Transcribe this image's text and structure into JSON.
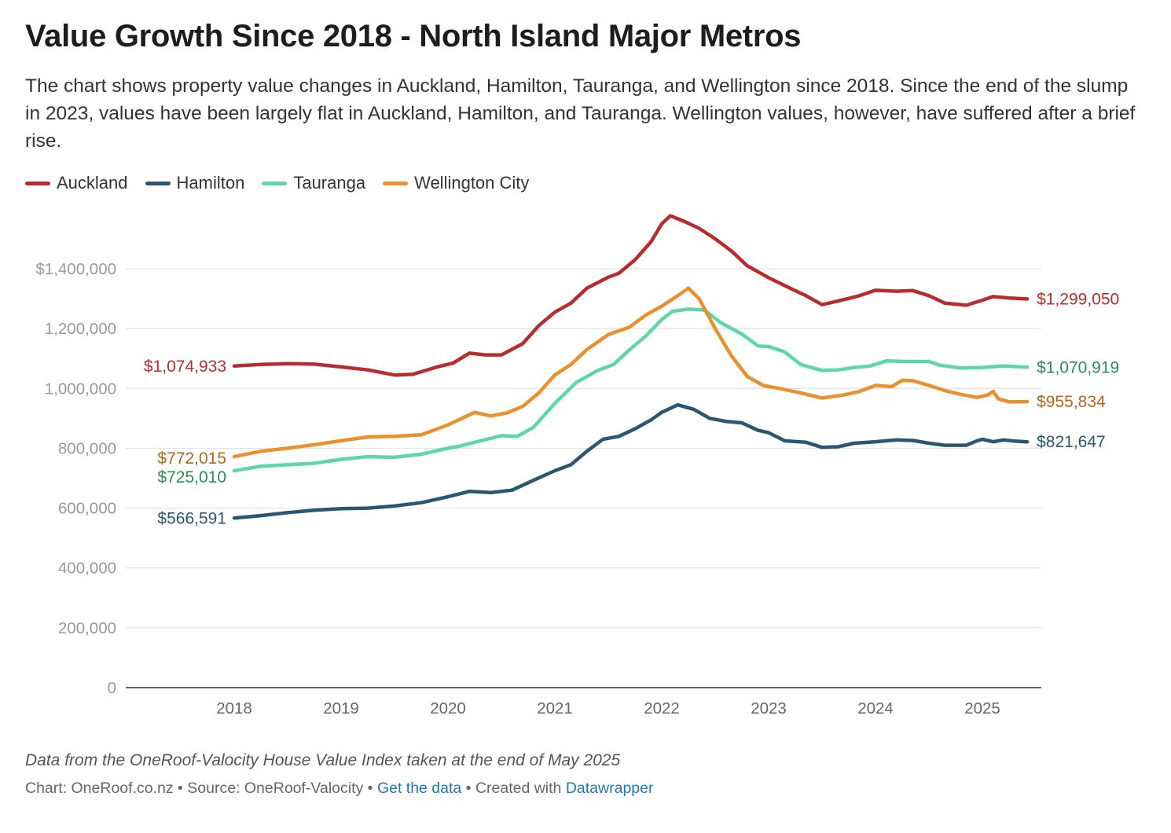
{
  "title": "Value Growth Since 2018 - North Island Major Metros",
  "subtitle": "The chart shows property value changes in Auckland, Hamilton, Tauranga, and Wellington since 2018. Since the end of the slump in 2023, values have been largely flat in Auckland, Hamilton, and Tauranga. Wellington values, however, have suffered after a brief rise.",
  "notes": "Data from the OneRoof-Valocity House Value Index taken at the end of May 2025",
  "byline": {
    "chart": "Chart: OneRoof.co.nz",
    "sep1": " • ",
    "source": "Source: OneRoof-Valocity",
    "sep2": " • ",
    "get_data": "Get the data",
    "sep3": " • ",
    "created": "Created with ",
    "datawrapper": "Datawrapper"
  },
  "chart_data": {
    "type": "line",
    "title": "Value Growth Since 2018 - North Island Major Metros",
    "xlabel": "",
    "ylabel": "",
    "xlim": [
      2017.0,
      2025.5
    ],
    "ylim": [
      0,
      1500000
    ],
    "x_ticks": [
      2018,
      2019,
      2020,
      2021,
      2022,
      2023,
      2024,
      2025
    ],
    "x_tick_labels": [
      "2018",
      "2019",
      "2020",
      "2021",
      "2022",
      "2023",
      "2024",
      "2025"
    ],
    "y_ticks": [
      0,
      200000,
      400000,
      600000,
      800000,
      1000000,
      1200000,
      1400000
    ],
    "y_tick_labels": [
      "0",
      "200,000",
      "400,000",
      "600,000",
      "800,000",
      "1,000,000",
      "1,200,000",
      "$1,400,000"
    ],
    "grid": true,
    "legend": "top-left",
    "series": [
      {
        "name": "Auckland",
        "color": "#b72d2d",
        "start_label": "$1,074,933",
        "end_label": "$1,299,050",
        "points": [
          [
            2018.0,
            1074933
          ],
          [
            2018.25,
            1080000
          ],
          [
            2018.5,
            1083000
          ],
          [
            2018.75,
            1081000
          ],
          [
            2019.0,
            1072000
          ],
          [
            2019.25,
            1062000
          ],
          [
            2019.5,
            1045000
          ],
          [
            2019.67,
            1047000
          ],
          [
            2019.9,
            1072000
          ],
          [
            2020.05,
            1085000
          ],
          [
            2020.2,
            1118000
          ],
          [
            2020.35,
            1112000
          ],
          [
            2020.5,
            1112000
          ],
          [
            2020.7,
            1150000
          ],
          [
            2020.85,
            1210000
          ],
          [
            2021.0,
            1255000
          ],
          [
            2021.15,
            1285000
          ],
          [
            2021.3,
            1335000
          ],
          [
            2021.5,
            1372000
          ],
          [
            2021.6,
            1385000
          ],
          [
            2021.75,
            1430000
          ],
          [
            2021.9,
            1490000
          ],
          [
            2022.0,
            1550000
          ],
          [
            2022.08,
            1577000
          ],
          [
            2022.2,
            1560000
          ],
          [
            2022.35,
            1535000
          ],
          [
            2022.5,
            1500000
          ],
          [
            2022.65,
            1460000
          ],
          [
            2022.8,
            1410000
          ],
          [
            2023.0,
            1370000
          ],
          [
            2023.2,
            1335000
          ],
          [
            2023.35,
            1310000
          ],
          [
            2023.5,
            1280000
          ],
          [
            2023.65,
            1292000
          ],
          [
            2023.85,
            1310000
          ],
          [
            2024.0,
            1328000
          ],
          [
            2024.2,
            1325000
          ],
          [
            2024.35,
            1327000
          ],
          [
            2024.5,
            1310000
          ],
          [
            2024.65,
            1285000
          ],
          [
            2024.85,
            1278000
          ],
          [
            2025.0,
            1295000
          ],
          [
            2025.1,
            1307000
          ],
          [
            2025.25,
            1302000
          ],
          [
            2025.42,
            1299050
          ]
        ]
      },
      {
        "name": "Hamilton",
        "color": "#2a5671",
        "start_label": "$566,591",
        "end_label": "$821,647",
        "points": [
          [
            2018.0,
            566591
          ],
          [
            2018.25,
            575000
          ],
          [
            2018.5,
            585000
          ],
          [
            2018.75,
            593000
          ],
          [
            2019.0,
            598000
          ],
          [
            2019.25,
            600000
          ],
          [
            2019.5,
            607000
          ],
          [
            2019.75,
            618000
          ],
          [
            2020.0,
            638000
          ],
          [
            2020.2,
            656000
          ],
          [
            2020.4,
            652000
          ],
          [
            2020.6,
            660000
          ],
          [
            2020.8,
            693000
          ],
          [
            2021.0,
            725000
          ],
          [
            2021.15,
            745000
          ],
          [
            2021.3,
            790000
          ],
          [
            2021.45,
            830000
          ],
          [
            2021.6,
            840000
          ],
          [
            2021.75,
            865000
          ],
          [
            2021.9,
            895000
          ],
          [
            2022.0,
            920000
          ],
          [
            2022.15,
            945000
          ],
          [
            2022.3,
            930000
          ],
          [
            2022.45,
            900000
          ],
          [
            2022.6,
            890000
          ],
          [
            2022.75,
            885000
          ],
          [
            2022.9,
            860000
          ],
          [
            2023.0,
            852000
          ],
          [
            2023.15,
            825000
          ],
          [
            2023.35,
            820000
          ],
          [
            2023.5,
            803000
          ],
          [
            2023.65,
            805000
          ],
          [
            2023.8,
            817000
          ],
          [
            2024.0,
            822000
          ],
          [
            2024.2,
            828000
          ],
          [
            2024.35,
            826000
          ],
          [
            2024.5,
            817000
          ],
          [
            2024.65,
            810000
          ],
          [
            2024.85,
            810000
          ],
          [
            2024.95,
            825000
          ],
          [
            2025.0,
            830000
          ],
          [
            2025.1,
            822000
          ],
          [
            2025.2,
            828000
          ],
          [
            2025.3,
            824000
          ],
          [
            2025.42,
            821647
          ]
        ]
      },
      {
        "name": "Tauranga",
        "color": "#5fd6a8",
        "start_label": "$725,010",
        "end_label": "$1,070,919",
        "points": [
          [
            2018.0,
            725010
          ],
          [
            2018.25,
            740000
          ],
          [
            2018.5,
            745000
          ],
          [
            2018.75,
            750000
          ],
          [
            2019.0,
            763000
          ],
          [
            2019.25,
            772000
          ],
          [
            2019.5,
            770000
          ],
          [
            2019.75,
            780000
          ],
          [
            2020.0,
            800000
          ],
          [
            2020.1,
            806000
          ],
          [
            2020.25,
            820000
          ],
          [
            2020.5,
            842000
          ],
          [
            2020.65,
            840000
          ],
          [
            2020.8,
            870000
          ],
          [
            2021.0,
            950000
          ],
          [
            2021.2,
            1020000
          ],
          [
            2021.4,
            1060000
          ],
          [
            2021.55,
            1080000
          ],
          [
            2021.7,
            1130000
          ],
          [
            2021.85,
            1175000
          ],
          [
            2022.0,
            1230000
          ],
          [
            2022.1,
            1258000
          ],
          [
            2022.25,
            1265000
          ],
          [
            2022.4,
            1262000
          ],
          [
            2022.55,
            1220000
          ],
          [
            2022.75,
            1182000
          ],
          [
            2022.9,
            1142000
          ],
          [
            2023.0,
            1140000
          ],
          [
            2023.15,
            1122000
          ],
          [
            2023.3,
            1080000
          ],
          [
            2023.5,
            1060000
          ],
          [
            2023.65,
            1062000
          ],
          [
            2023.8,
            1070000
          ],
          [
            2023.95,
            1075000
          ],
          [
            2024.1,
            1092000
          ],
          [
            2024.3,
            1090000
          ],
          [
            2024.5,
            1090000
          ],
          [
            2024.6,
            1078000
          ],
          [
            2024.8,
            1068000
          ],
          [
            2025.0,
            1070000
          ],
          [
            2025.2,
            1075000
          ],
          [
            2025.42,
            1070919
          ]
        ]
      },
      {
        "name": "Wellington City",
        "color": "#e8912d",
        "start_label": "$772,015",
        "end_label": "$955,834",
        "points": [
          [
            2018.0,
            772015
          ],
          [
            2018.25,
            790000
          ],
          [
            2018.5,
            800000
          ],
          [
            2018.75,
            812000
          ],
          [
            2019.0,
            825000
          ],
          [
            2019.25,
            838000
          ],
          [
            2019.5,
            840000
          ],
          [
            2019.75,
            845000
          ],
          [
            2020.0,
            878000
          ],
          [
            2020.25,
            920000
          ],
          [
            2020.4,
            908000
          ],
          [
            2020.55,
            918000
          ],
          [
            2020.7,
            940000
          ],
          [
            2020.85,
            985000
          ],
          [
            2021.0,
            1045000
          ],
          [
            2021.15,
            1080000
          ],
          [
            2021.3,
            1130000
          ],
          [
            2021.5,
            1180000
          ],
          [
            2021.7,
            1205000
          ],
          [
            2021.85,
            1245000
          ],
          [
            2022.0,
            1275000
          ],
          [
            2022.15,
            1310000
          ],
          [
            2022.25,
            1335000
          ],
          [
            2022.35,
            1300000
          ],
          [
            2022.5,
            1200000
          ],
          [
            2022.65,
            1110000
          ],
          [
            2022.8,
            1040000
          ],
          [
            2022.95,
            1010000
          ],
          [
            2023.1,
            1000000
          ],
          [
            2023.3,
            985000
          ],
          [
            2023.5,
            968000
          ],
          [
            2023.7,
            978000
          ],
          [
            2023.85,
            990000
          ],
          [
            2024.0,
            1010000
          ],
          [
            2024.15,
            1006000
          ],
          [
            2024.25,
            1027000
          ],
          [
            2024.35,
            1026000
          ],
          [
            2024.5,
            1010000
          ],
          [
            2024.65,
            993000
          ],
          [
            2024.8,
            980000
          ],
          [
            2024.95,
            970000
          ],
          [
            2025.05,
            978000
          ],
          [
            2025.1,
            990000
          ],
          [
            2025.15,
            965000
          ],
          [
            2025.25,
            955000
          ],
          [
            2025.42,
            955834
          ]
        ]
      }
    ]
  }
}
